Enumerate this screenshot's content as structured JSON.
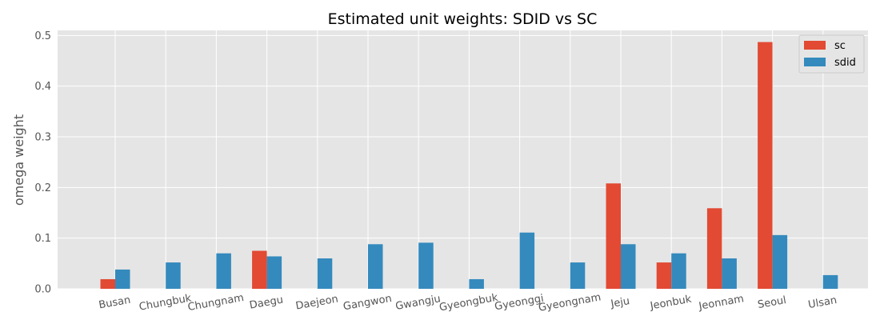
{
  "chart_data": {
    "type": "bar",
    "title": "Estimated unit weights: SDID vs SC",
    "xlabel": "",
    "ylabel": "omega weight",
    "categories": [
      "Busan",
      "Chungbuk",
      "Chungnam",
      "Daegu",
      "Daejeon",
      "Gangwon",
      "Gwangju",
      "Gyeongbuk",
      "Gyeonggi",
      "Gyeongnam",
      "Jeju",
      "Jeonbuk",
      "Jeonnam",
      "Seoul",
      "Ulsan"
    ],
    "series": [
      {
        "name": "sc",
        "color": "#E24A33",
        "values": [
          0.019,
          0.0,
          0.0,
          0.075,
          0.0,
          0.0,
          0.0,
          0.0,
          0.0,
          0.0,
          0.208,
          0.052,
          0.159,
          0.487,
          0.0
        ]
      },
      {
        "name": "sdid",
        "color": "#348ABD",
        "values": [
          0.038,
          0.052,
          0.07,
          0.064,
          0.06,
          0.088,
          0.091,
          0.019,
          0.111,
          0.052,
          0.088,
          0.07,
          0.06,
          0.106,
          0.027
        ]
      }
    ],
    "ylim": [
      0,
      0.51
    ],
    "yticks": [
      "0.0",
      "0.1",
      "0.2",
      "0.3",
      "0.4",
      "0.5"
    ],
    "grid": true,
    "legend_position": "top-right",
    "background_color": "#E5E5E5",
    "grid_color": "#FFFFFF"
  }
}
